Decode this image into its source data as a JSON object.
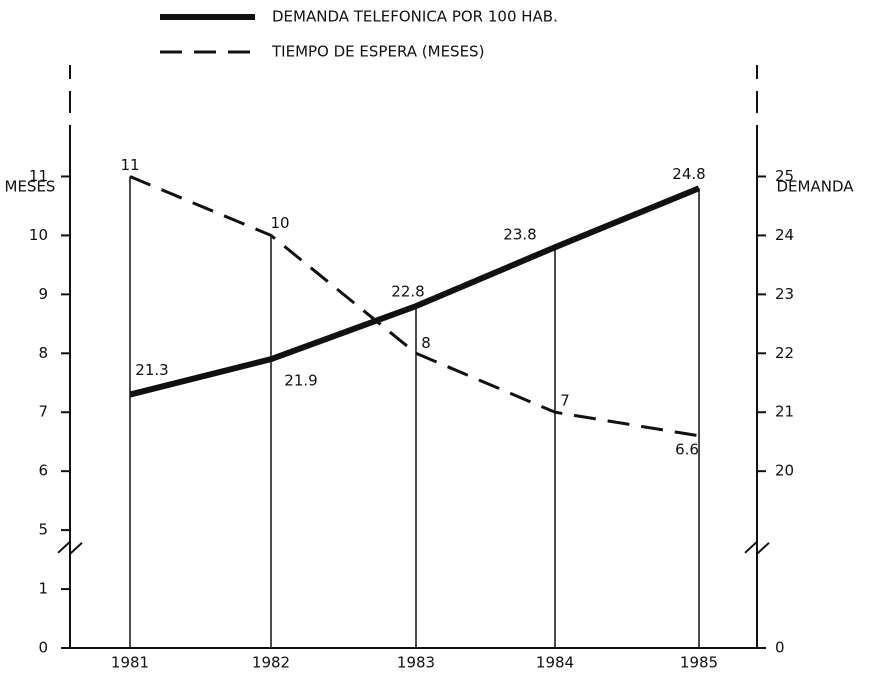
{
  "chart_data": {
    "type": "line",
    "categories": [
      "1981",
      "1982",
      "1983",
      "1984",
      "1985"
    ],
    "ylabel": "MESES",
    "y2label": "DEMANDA",
    "ylim": [
      0,
      11.5
    ],
    "yticks": [
      0,
      1,
      5,
      6,
      7,
      8,
      9,
      10,
      11
    ],
    "ybreak": [
      1.7,
      4.7
    ],
    "y2lim": [
      0,
      25.5
    ],
    "y2ticks": [
      0,
      20,
      21,
      22,
      23,
      24,
      25
    ],
    "y2break": [
      1.7,
      18.7
    ],
    "series": [
      {
        "name": "DEMANDA TELEFONICA POR 100 HAB.",
        "color": "#111111",
        "style": "solid",
        "axis": "y2",
        "values": [
          21.3,
          21.9,
          22.8,
          23.8,
          24.8
        ]
      },
      {
        "name": "TIEMPO DE ESPERA (MESES)",
        "color": "#111111",
        "style": "dashed",
        "axis": "y",
        "values": [
          11,
          10,
          8,
          7,
          6.6
        ]
      }
    ]
  }
}
